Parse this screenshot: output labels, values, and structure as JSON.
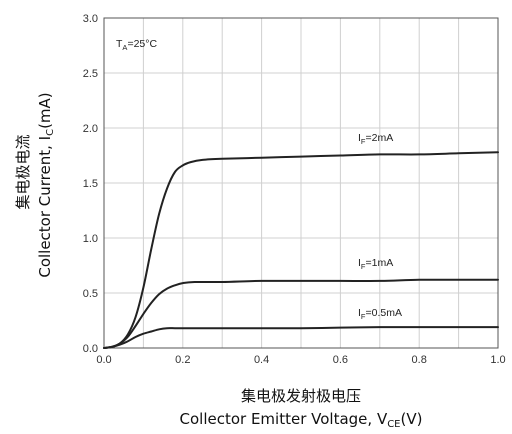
{
  "chart_data": {
    "type": "line",
    "condition": {
      "main": "T",
      "sub": "A",
      "tail": "=25°C"
    },
    "xlabel_cn": "集电极发射极电压",
    "xlabel_en": {
      "main": "Collector Emitter Voltage, V",
      "sub": "CE",
      "tail": "(V)"
    },
    "ylabel_cn": "集电极电流",
    "ylabel_en": {
      "main": "Collector Current, I",
      "sub": "C",
      "tail": "(mA)"
    },
    "xlim": [
      0,
      1.0
    ],
    "ylim": [
      0,
      3.0
    ],
    "xticks": [
      "0.0",
      "0.2",
      "0.4",
      "0.6",
      "0.8",
      "1.0"
    ],
    "yticks": [
      "0.0",
      "0.5",
      "1.0",
      "1.5",
      "2.0",
      "2.5",
      "3.0"
    ],
    "grid": true,
    "series": [
      {
        "label": {
          "main": "I",
          "sub": "F",
          "tail": "=2mA"
        },
        "x": [
          0,
          0.02,
          0.04,
          0.06,
          0.08,
          0.1,
          0.12,
          0.14,
          0.16,
          0.18,
          0.2,
          0.22,
          0.25,
          0.3,
          0.4,
          0.5,
          0.6,
          0.7,
          0.8,
          0.9,
          1.0
        ],
        "y": [
          0,
          0.01,
          0.04,
          0.12,
          0.28,
          0.55,
          0.9,
          1.22,
          1.45,
          1.6,
          1.66,
          1.69,
          1.71,
          1.72,
          1.73,
          1.74,
          1.75,
          1.76,
          1.76,
          1.77,
          1.78
        ]
      },
      {
        "label": {
          "main": "I",
          "sub": "F",
          "tail": "=1mA"
        },
        "x": [
          0,
          0.02,
          0.04,
          0.06,
          0.08,
          0.1,
          0.12,
          0.14,
          0.16,
          0.18,
          0.2,
          0.23,
          0.3,
          0.4,
          0.5,
          0.6,
          0.7,
          0.8,
          0.9,
          1.0
        ],
        "y": [
          0,
          0.01,
          0.04,
          0.1,
          0.2,
          0.31,
          0.41,
          0.49,
          0.54,
          0.57,
          0.59,
          0.6,
          0.6,
          0.61,
          0.61,
          0.61,
          0.61,
          0.62,
          0.62,
          0.62
        ]
      },
      {
        "label": {
          "main": "I",
          "sub": "F",
          "tail": "=0.5mA"
        },
        "x": [
          0,
          0.02,
          0.04,
          0.06,
          0.08,
          0.1,
          0.12,
          0.14,
          0.16,
          0.18,
          0.2,
          0.25,
          0.3,
          0.4,
          0.5,
          0.6,
          0.7,
          0.8,
          0.9,
          1.0
        ],
        "y": [
          0,
          0.01,
          0.03,
          0.06,
          0.1,
          0.13,
          0.15,
          0.17,
          0.18,
          0.18,
          0.18,
          0.18,
          0.18,
          0.18,
          0.18,
          0.185,
          0.19,
          0.19,
          0.19,
          0.19
        ]
      }
    ],
    "colors": {
      "line": "#222222",
      "grid": "#d0d0d0",
      "frame": "#555555"
    }
  }
}
